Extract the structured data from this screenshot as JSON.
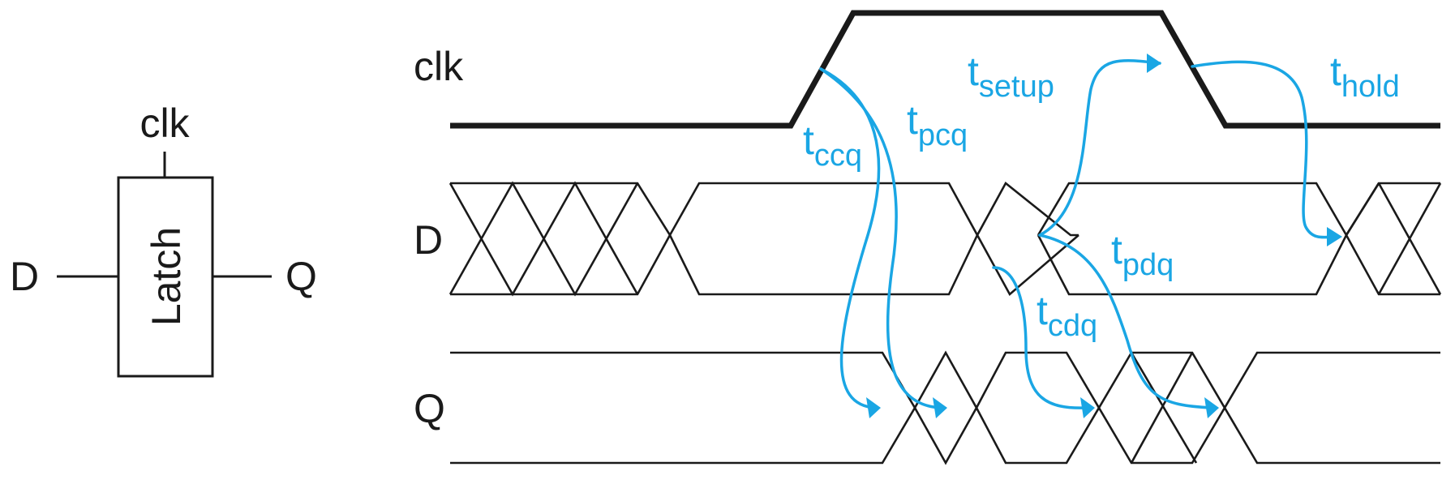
{
  "latch": {
    "block_label": "Latch",
    "clk_pin": "clk",
    "d_pin": "D",
    "q_pin": "Q"
  },
  "signals": {
    "clk": "clk",
    "d": "D",
    "q": "Q"
  },
  "timing": {
    "ccq": {
      "main": "t",
      "sub": "ccq"
    },
    "pcq": {
      "main": "t",
      "sub": "pcq"
    },
    "setup": {
      "main": "t",
      "sub": "setup"
    },
    "hold": {
      "main": "t",
      "sub": "hold"
    },
    "pdq": {
      "main": "t",
      "sub": "pdq"
    },
    "cdq": {
      "main": "t",
      "sub": "cdq"
    }
  },
  "colors": {
    "ink": "#1a1a1a",
    "timing": "#1aa6e4"
  }
}
